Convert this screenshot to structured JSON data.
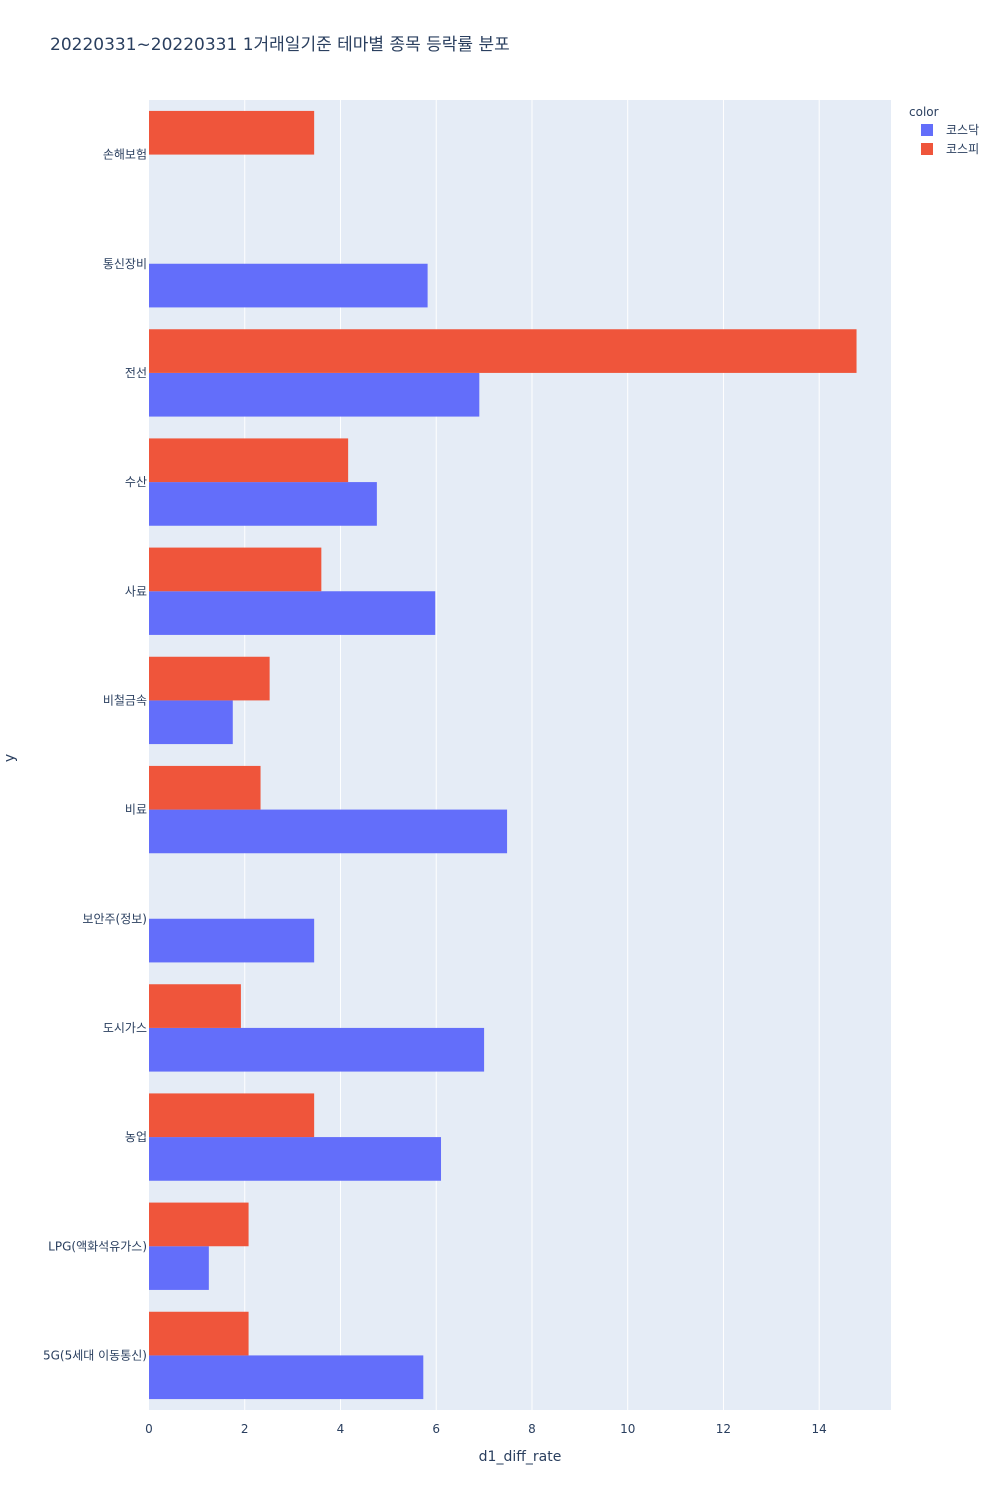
{
  "chart_data": {
    "type": "bar",
    "orientation": "horizontal",
    "barmode": "group",
    "title": "20220331~20220331 1거래일기준 테마별 종목 등락률 분포",
    "xlabel": "d1_diff_rate",
    "ylabel": "y",
    "xlim": [
      0,
      15.5
    ],
    "xticks": [
      0,
      2,
      4,
      6,
      8,
      10,
      12,
      14
    ],
    "grid": true,
    "legend": {
      "title": "color",
      "position": "top-right"
    },
    "categories": [
      "5G(5세대 이동통신)",
      "LPG(액화석유가스)",
      "농업",
      "도시가스",
      "보안주(정보)",
      "비료",
      "비철금속",
      "사료",
      "수산",
      "전선",
      "통신장비",
      "손해보험"
    ],
    "series": [
      {
        "name": "코스닥",
        "color": "#636efa",
        "values": [
          5.73,
          1.25,
          6.1,
          7.0,
          3.45,
          7.48,
          1.75,
          5.98,
          4.76,
          6.9,
          5.82,
          null
        ]
      },
      {
        "name": "코스피",
        "color": "#ef553b",
        "values": [
          2.08,
          2.08,
          3.45,
          1.92,
          null,
          2.33,
          2.52,
          3.6,
          4.16,
          14.78,
          null,
          3.45
        ]
      }
    ]
  }
}
